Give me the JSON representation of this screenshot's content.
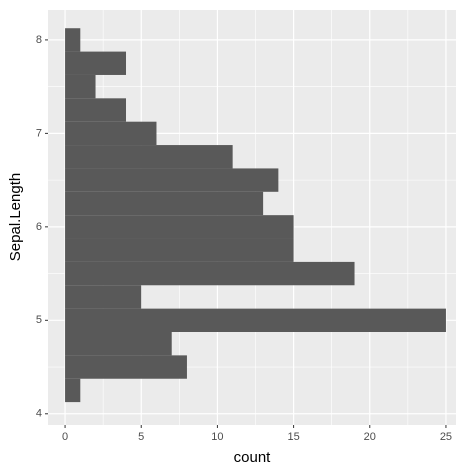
{
  "chart_data": {
    "type": "histogram",
    "orientation": "horizontal",
    "bins": [
      4.125,
      4.375,
      4.625,
      4.875,
      5.125,
      5.375,
      5.625,
      5.875,
      6.125,
      6.375,
      6.625,
      6.875,
      7.125,
      7.375,
      7.625,
      7.875,
      8.125
    ],
    "counts": [
      1,
      8,
      7,
      25,
      5,
      19,
      15,
      15,
      13,
      14,
      11,
      6,
      4,
      2,
      4,
      1
    ],
    "color": "#595959",
    "xlabel": "count",
    "ylabel": "Sepal.Length",
    "xlim": [
      -1.12,
      25.66
    ],
    "xticks": [
      0,
      5,
      10,
      15,
      20,
      25
    ],
    "ylim": [
      3.88,
      8.32
    ],
    "yticks": [
      4,
      5,
      6,
      7,
      8
    ],
    "grid": true
  }
}
